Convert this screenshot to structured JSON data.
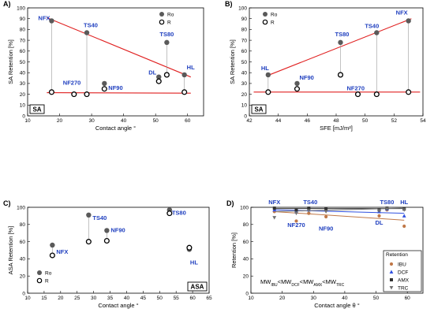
{
  "chart_data": [
    {
      "id": "A",
      "type": "scatter",
      "panel_letter": "A)",
      "xlabel": "Contact angle  °",
      "ylabel": "SA Retention [%]",
      "xlim": [
        10,
        65
      ],
      "ylim": [
        0,
        100
      ],
      "xticks": [
        10,
        20,
        30,
        40,
        50,
        60
      ],
      "yticks": [
        0,
        10,
        20,
        30,
        40,
        50,
        60,
        70,
        80,
        90,
        100
      ],
      "legend": {
        "position": "top-right",
        "entries": [
          "Ro",
          "R"
        ]
      },
      "tag": "SA",
      "points": [
        {
          "label": "NFX",
          "x": 17.5,
          "ro": 88,
          "r": 22
        },
        {
          "label": "NF270",
          "x": 24.5,
          "ro": null,
          "r": 20
        },
        {
          "label": "TS40",
          "x": 28.5,
          "ro": 77,
          "r": 20
        },
        {
          "label": "NF90",
          "x": 34,
          "ro": 30,
          "r": 25
        },
        {
          "label": "DL",
          "x": 51,
          "ro": 36,
          "r": 32
        },
        {
          "label": "TS80",
          "x": 53.5,
          "ro": 68,
          "r": 38
        },
        {
          "label": "HL",
          "x": 59,
          "ro": 38,
          "r": 22
        }
      ],
      "fit_lines": [
        {
          "color": "#e02020",
          "x": [
            16,
            61
          ],
          "y": [
            91,
            36
          ]
        },
        {
          "color": "#e02020",
          "x": [
            16,
            61
          ],
          "y": [
            21.5,
            21
          ]
        }
      ]
    },
    {
      "id": "B",
      "type": "scatter",
      "panel_letter": "B)",
      "xlabel": "SFE [mJ/m²]",
      "ylabel": "SA Retention [%]",
      "xlim": [
        42,
        54
      ],
      "ylim": [
        0,
        100
      ],
      "xticks": [
        42,
        44,
        46,
        48,
        50,
        52,
        54
      ],
      "yticks": [
        0,
        10,
        20,
        30,
        40,
        50,
        60,
        70,
        80,
        90,
        100
      ],
      "legend": {
        "position": "top-left",
        "entries": [
          "Ro",
          "R"
        ]
      },
      "tag": "SA",
      "points": [
        {
          "label": "HL",
          "x": 43.3,
          "ro": 38,
          "r": 22
        },
        {
          "label": "NF90",
          "x": 45.3,
          "ro": 30,
          "r": 25
        },
        {
          "label": "TS80",
          "x": 48.3,
          "ro": 68,
          "r": 38
        },
        {
          "label": "NF270",
          "x": 49.5,
          "ro": null,
          "r": 20
        },
        {
          "label": "TS40",
          "x": 50.8,
          "ro": 77,
          "r": 20
        },
        {
          "label": "NFX",
          "x": 53,
          "ro": 88,
          "r": 22
        }
      ],
      "fit_lines": [
        {
          "color": "#e02020",
          "x": [
            43.2,
            53.2
          ],
          "y": [
            37,
            90
          ]
        },
        {
          "color": "#e02020",
          "x": [
            42.3,
            53.8
          ],
          "y": [
            22,
            22
          ]
        }
      ]
    },
    {
      "id": "C",
      "type": "scatter",
      "panel_letter": "C)",
      "xlabel": "Contact angle  °",
      "ylabel": "ASA Retention [%]",
      "xlim": [
        10,
        65
      ],
      "ylim": [
        0,
        100
      ],
      "xticks": [
        10,
        15,
        20,
        25,
        30,
        35,
        40,
        45,
        50,
        55,
        60,
        65
      ],
      "yticks": [
        0,
        20,
        40,
        60,
        80,
        100
      ],
      "legend": {
        "position": "bottom-left",
        "entries": [
          "Ro",
          "R"
        ]
      },
      "tag": "ASA",
      "points": [
        {
          "label": "NFX",
          "x": 17.5,
          "ro": 56,
          "r": 44
        },
        {
          "label": "TS40",
          "x": 28.5,
          "ro": 91,
          "r": 60
        },
        {
          "label": "NF90",
          "x": 34,
          "ro": 73,
          "r": 61
        },
        {
          "label": "TS80",
          "x": 53,
          "ro": 97,
          "r": 93
        },
        {
          "label": "HL",
          "x": 59,
          "ro": 51,
          "r": 53
        }
      ]
    },
    {
      "id": "D",
      "type": "scatter",
      "panel_letter": "D)",
      "xlabel": "Contact angle θ °",
      "ylabel": "Retention [%]",
      "xlim": [
        10,
        65
      ],
      "ylim": [
        0,
        100
      ],
      "xticks": [
        10,
        20,
        30,
        40,
        50,
        60
      ],
      "yticks": [
        0,
        20,
        40,
        60,
        80,
        100
      ],
      "top_labels": [
        {
          "text": "NFX",
          "x": 17.5
        },
        {
          "text": "TS40",
          "x": 29
        },
        {
          "text": "TS80",
          "x": 53.5
        },
        {
          "text": "HL",
          "x": 59
        }
      ],
      "inner_labels": [
        {
          "text": "NF270",
          "x": 24.5,
          "y": 77
        },
        {
          "text": "NF90",
          "x": 34,
          "y": 73
        },
        {
          "text": "DL",
          "x": 51,
          "y": 80
        }
      ],
      "note": "MW<sub>IBU</sub><MW<sub>DCF</sub><MW<sub>AMX</sub><MW<sub>TRC</sub>",
      "legend": {
        "position": "bottom-right",
        "title": "Retention",
        "entries": [
          {
            "name": "IBU",
            "color": "#c07848",
            "marker": "circle"
          },
          {
            "name": "DCF",
            "color": "#3050e0",
            "marker": "triangle-up"
          },
          {
            "name": "AMX",
            "color": "#303030",
            "marker": "square"
          },
          {
            "name": "TRC",
            "color": "#707070",
            "marker": "triangle-down"
          }
        ]
      },
      "x": [
        17.5,
        24.5,
        28.5,
        34,
        51,
        53.5,
        59
      ],
      "series": [
        {
          "name": "IBU",
          "values": [
            95,
            84,
            93,
            89,
            90,
            97,
            78
          ],
          "fit": [
            95,
            85
          ]
        },
        {
          "name": "DCF",
          "values": [
            97,
            95,
            97,
            97,
            95,
            98,
            90
          ],
          "fit": [
            97,
            93
          ]
        },
        {
          "name": "AMX",
          "values": [
            99,
            97,
            99,
            98,
            97,
            99,
            98
          ],
          "fit": [
            98.5,
            98.5
          ]
        },
        {
          "name": "TRC",
          "values": [
            88,
            93,
            96,
            95,
            96,
            98,
            97
          ],
          "fit": [
            95,
            99
          ]
        }
      ]
    }
  ],
  "legend_text": {
    "ro": "Ro",
    "r": "R",
    "retention": "Retention"
  },
  "notes": {
    "mw_order": "MW",
    "ibu": "IBU",
    "dcf": "DCF",
    "amx": "AMX",
    "trc": "TRC",
    "lt": "<"
  }
}
